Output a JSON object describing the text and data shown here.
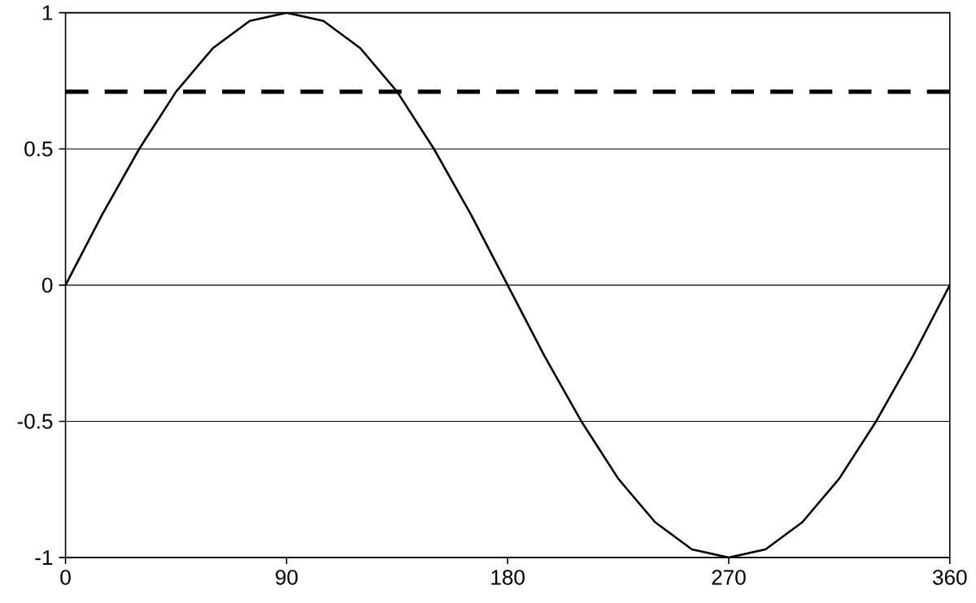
{
  "chart_data": {
    "type": "line",
    "x": [
      0,
      15,
      30,
      45,
      60,
      75,
      90,
      105,
      120,
      135,
      150,
      165,
      180,
      195,
      210,
      225,
      240,
      255,
      270,
      285,
      300,
      315,
      330,
      345,
      360
    ],
    "series": [
      {
        "color": "#000000",
        "values": [
          0,
          0.26,
          0.5,
          0.71,
          0.87,
          0.97,
          1,
          0.97,
          0.87,
          0.71,
          0.5,
          0.26,
          0,
          -0.26,
          -0.5,
          -0.71,
          -0.87,
          -0.97,
          -1,
          -0.97,
          -0.87,
          -0.71,
          -0.5,
          -0.26,
          0
        ]
      }
    ],
    "xlim": [
      0,
      360
    ],
    "ylim": [
      -1,
      1
    ],
    "xticks": [
      0,
      90,
      180,
      270,
      360
    ],
    "yticks": [
      -1,
      -0.5,
      0,
      0.5,
      1
    ],
    "grid": "y",
    "line_style": "solid",
    "marker": "none",
    "ref_lines": [
      {
        "axis": "y",
        "value": 0.71,
        "color": "#000000",
        "line_style": "dashed"
      }
    ]
  }
}
